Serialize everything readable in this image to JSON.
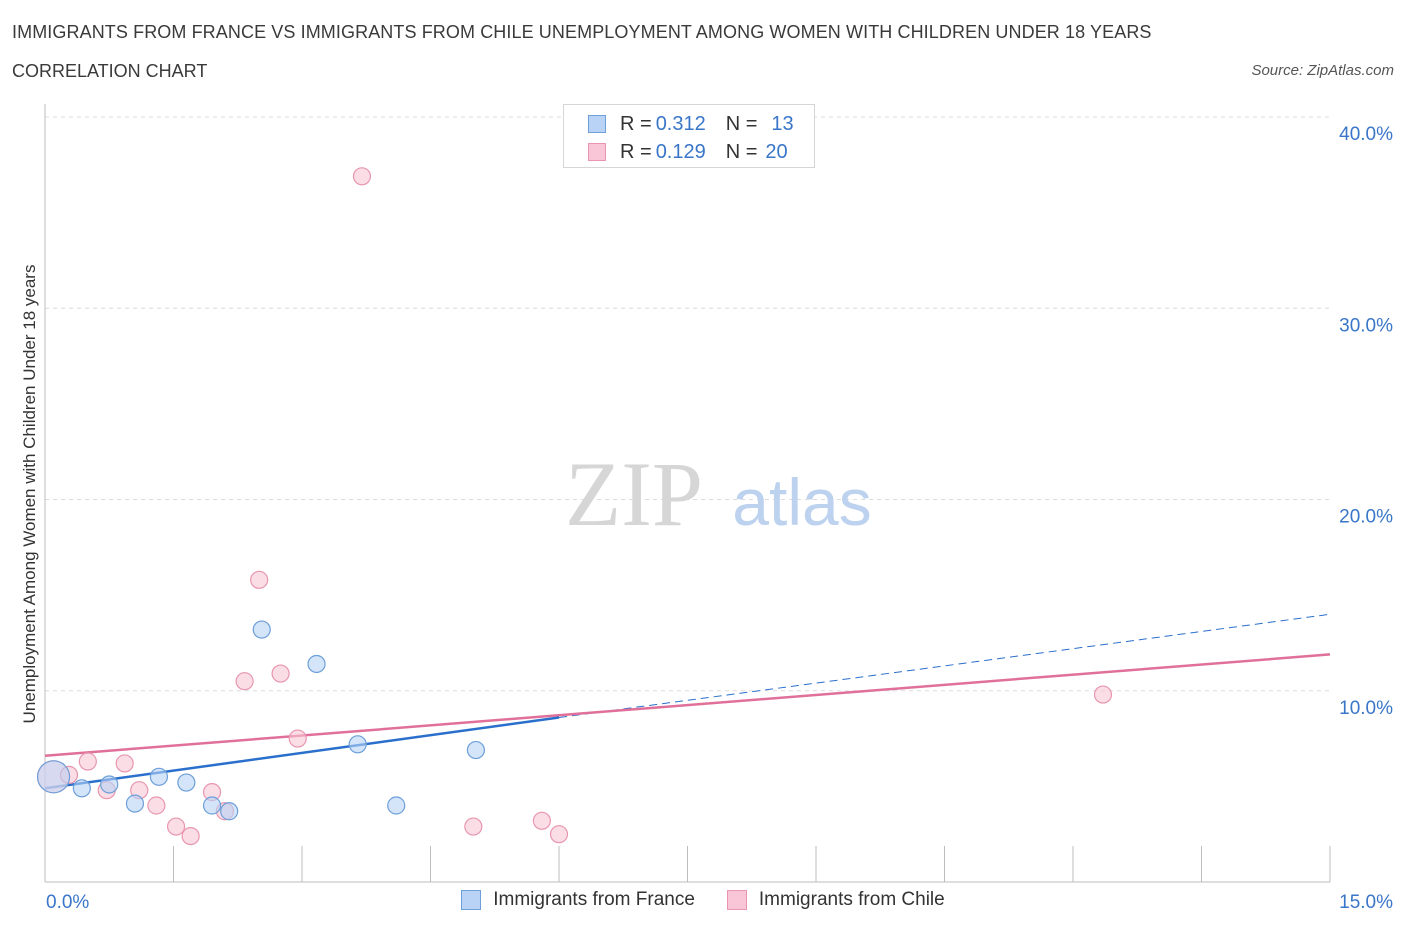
{
  "header": {
    "title": "IMMIGRANTS FROM FRANCE VS IMMIGRANTS FROM CHILE UNEMPLOYMENT AMONG WOMEN WITH CHILDREN UNDER 18 YEARS",
    "subtitle": "CORRELATION CHART",
    "source": "Source: ZipAtlas.com"
  },
  "watermark": {
    "zip": "ZIP",
    "atlas": "atlas"
  },
  "legend": {
    "rows": [
      {
        "r_label": "R =",
        "r_value": "0.312",
        "n_label": "N =",
        "n_value": "13"
      },
      {
        "r_label": "R =",
        "r_value": "0.129",
        "n_label": "N =",
        "n_value": "20"
      }
    ]
  },
  "colors": {
    "france_fill": "#b8d3f5",
    "france_stroke": "#6d9fd8",
    "france_line": "#2a6fcc",
    "chile_fill": "#f8c6d6",
    "chile_stroke": "#e896b0",
    "chile_line": "#e0709a",
    "axis_text": "#3a76c8",
    "grid": "#dcdcdc"
  },
  "chart_data": {
    "type": "scatter",
    "title": "IMMIGRANTS FROM FRANCE VS IMMIGRANTS FROM CHILE UNEMPLOYMENT AMONG WOMEN WITH CHILDREN UNDER 18 YEARS",
    "xlabel": "",
    "ylabel": "Unemployment Among Women with Children Under 18 years",
    "xlim": [
      0,
      15
    ],
    "ylim": [
      0,
      40
    ],
    "x_tick_labels": [
      "0.0%",
      "15.0%"
    ],
    "y_ticks": [
      10,
      20,
      30,
      40
    ],
    "y_tick_labels": [
      "10.0%",
      "20.0%",
      "30.0%",
      "40.0%"
    ],
    "grid": true,
    "series": [
      {
        "name": "Immigrants from France",
        "r": 0.312,
        "n": 13,
        "points": [
          {
            "x": 0.1,
            "y": 5.5,
            "big": true
          },
          {
            "x": 0.43,
            "y": 4.9
          },
          {
            "x": 0.75,
            "y": 5.1
          },
          {
            "x": 1.05,
            "y": 4.1
          },
          {
            "x": 1.33,
            "y": 5.5
          },
          {
            "x": 1.65,
            "y": 5.2
          },
          {
            "x": 1.95,
            "y": 4.0
          },
          {
            "x": 2.15,
            "y": 3.7
          },
          {
            "x": 2.53,
            "y": 13.2
          },
          {
            "x": 3.17,
            "y": 11.4
          },
          {
            "x": 3.65,
            "y": 7.2
          },
          {
            "x": 4.1,
            "y": 4.0
          },
          {
            "x": 5.03,
            "y": 6.9
          }
        ],
        "trend": {
          "x0": 0,
          "y0": 4.9,
          "x1": 6.0,
          "y1": 8.6,
          "dash_x1": 15.0,
          "dash_y1": 14.0
        }
      },
      {
        "name": "Immigrants from Chile",
        "r": 0.129,
        "n": 20,
        "points": [
          {
            "x": 0.1,
            "y": 5.5,
            "big": true
          },
          {
            "x": 0.28,
            "y": 5.6
          },
          {
            "x": 0.5,
            "y": 6.3
          },
          {
            "x": 0.72,
            "y": 4.8
          },
          {
            "x": 0.93,
            "y": 6.2
          },
          {
            "x": 1.1,
            "y": 4.8
          },
          {
            "x": 1.3,
            "y": 4.0
          },
          {
            "x": 1.53,
            "y": 2.9
          },
          {
            "x": 1.7,
            "y": 2.4
          },
          {
            "x": 1.95,
            "y": 4.7
          },
          {
            "x": 2.1,
            "y": 3.7
          },
          {
            "x": 2.33,
            "y": 10.5
          },
          {
            "x": 2.5,
            "y": 15.8
          },
          {
            "x": 2.75,
            "y": 10.9
          },
          {
            "x": 2.95,
            "y": 7.5
          },
          {
            "x": 3.7,
            "y": 36.9
          },
          {
            "x": 5.0,
            "y": 2.9
          },
          {
            "x": 5.8,
            "y": 3.2
          },
          {
            "x": 6.0,
            "y": 2.5
          },
          {
            "x": 12.35,
            "y": 9.8
          }
        ],
        "trend": {
          "x0": 0,
          "y0": 6.6,
          "x1": 15.0,
          "y1": 11.9
        }
      }
    ]
  },
  "bottom_legend": {
    "france": "Immigrants from France",
    "chile": "Immigrants from Chile"
  }
}
